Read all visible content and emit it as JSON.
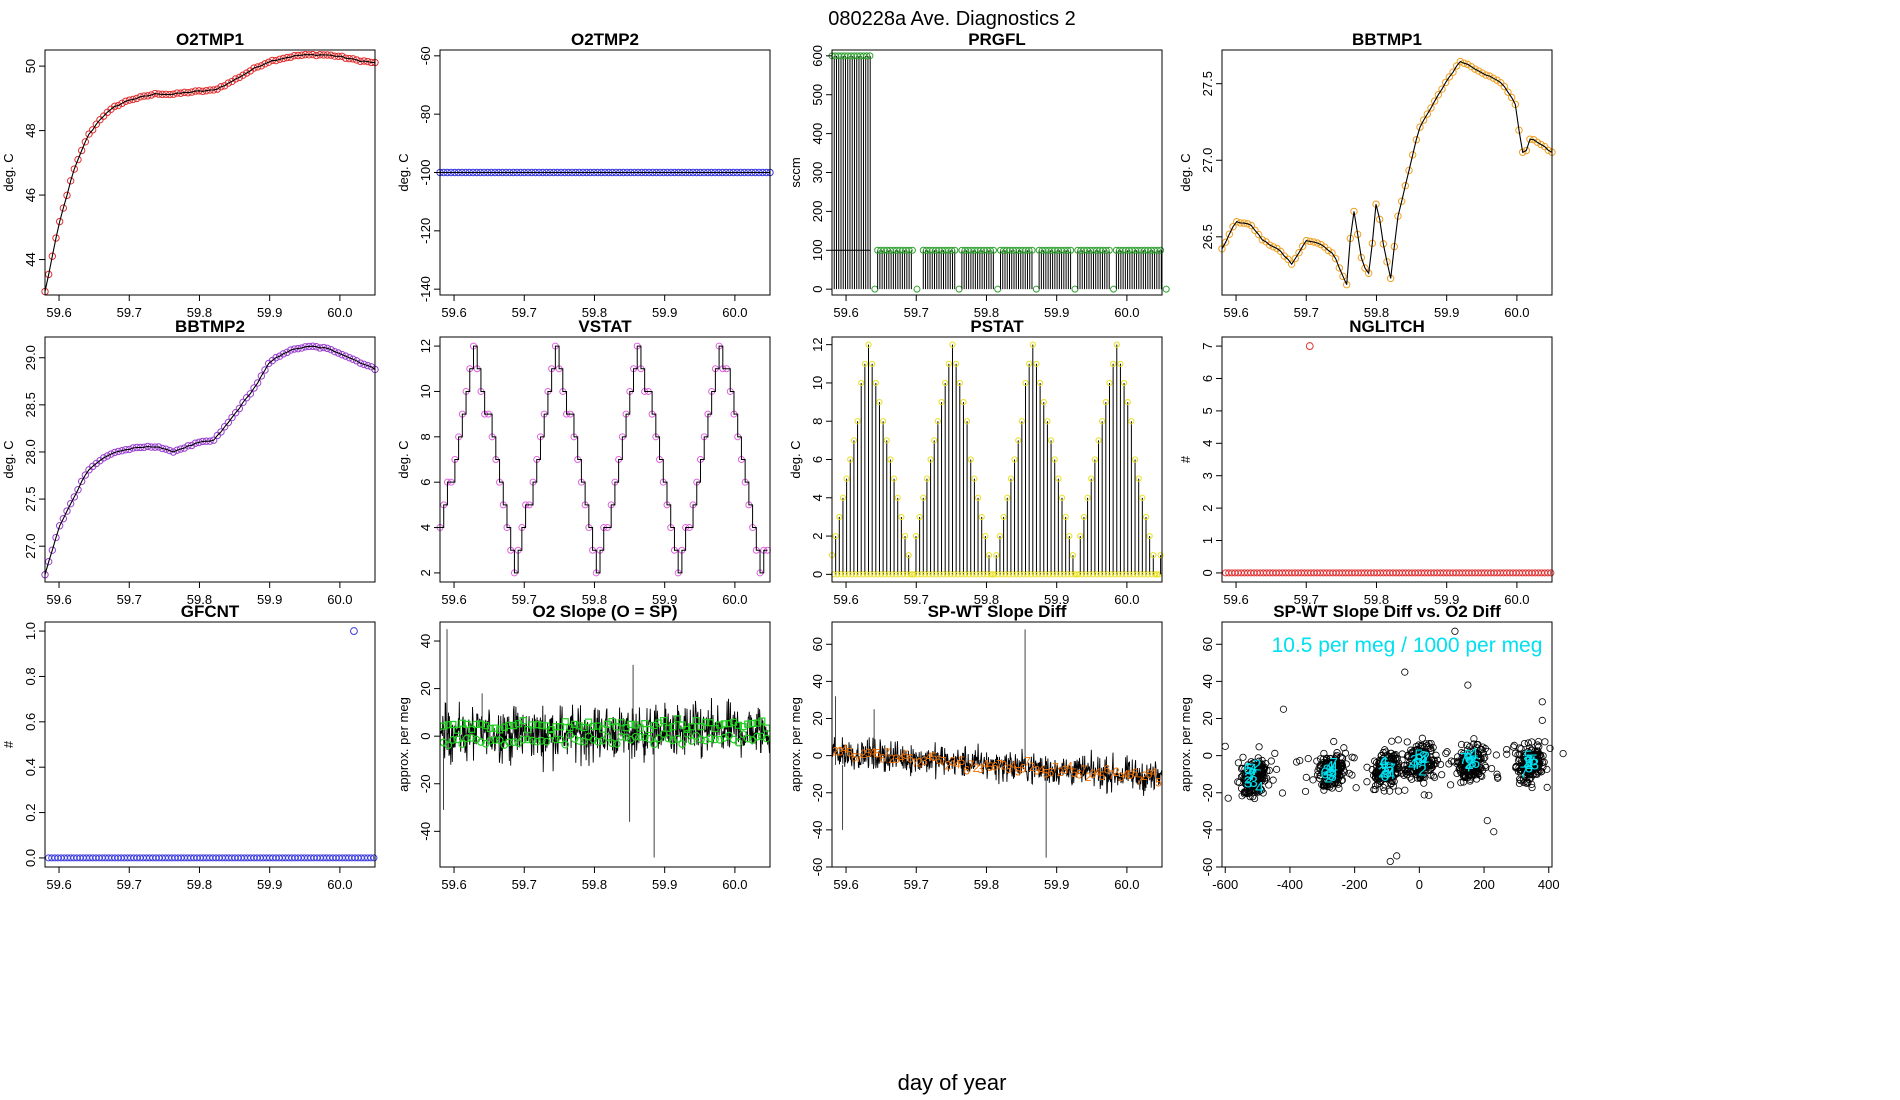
{
  "figure": {
    "title": "080228a   Ave. Diagnostics 2",
    "xlabel": "day of year"
  },
  "colors": {
    "red": "#e03030",
    "blue": "#3838e0",
    "green": "#30a030",
    "orange": "#f0a020",
    "purple": "#9a40d0",
    "magenta": "#e060e0",
    "yellow": "#e8e020",
    "cyan": "#00e0f0",
    "darkgreen": "#20d020",
    "darkorange": "#f07000",
    "line": "#000000"
  },
  "chart_data": [
    {
      "id": "o2tmp1",
      "title": "O2TMP1",
      "ylabel": "deg. C",
      "type": "line",
      "xlim": [
        59.58,
        60.05
      ],
      "ylim": [
        42.9,
        50.5
      ],
      "xticks": [
        "59.6",
        "59.7",
        "59.8",
        "59.9",
        "60.0"
      ],
      "yticks": [
        "44",
        "46",
        "48",
        "50"
      ],
      "marker_color": "red",
      "x": [
        59.58,
        59.6,
        59.62,
        59.64,
        59.66,
        59.68,
        59.7,
        59.72,
        59.74,
        59.76,
        59.78,
        59.8,
        59.82,
        59.84,
        59.86,
        59.88,
        59.9,
        59.92,
        59.94,
        59.96,
        59.98,
        60.0,
        60.02,
        60.05
      ],
      "y": [
        43.0,
        45.1,
        46.7,
        47.8,
        48.4,
        48.75,
        48.95,
        49.05,
        49.15,
        49.12,
        49.18,
        49.22,
        49.25,
        49.45,
        49.7,
        49.95,
        50.15,
        50.25,
        50.33,
        50.35,
        50.35,
        50.3,
        50.2,
        50.1
      ]
    },
    {
      "id": "o2tmp2",
      "title": "O2TMP2",
      "ylabel": "deg. C",
      "type": "line",
      "xlim": [
        59.58,
        60.05
      ],
      "ylim": [
        -142,
        -58
      ],
      "xticks": [
        "59.6",
        "59.7",
        "59.8",
        "59.9",
        "60.0"
      ],
      "yticks": [
        "-140",
        "-120",
        "-100",
        "-80",
        "-60"
      ],
      "marker_color": "blue",
      "x": [
        59.58,
        60.05
      ],
      "y": [
        -100,
        -100
      ]
    },
    {
      "id": "prgfl",
      "title": "PRGFL",
      "ylabel": "sccm",
      "type": "stem",
      "xlim": [
        59.58,
        60.05
      ],
      "ylim": [
        -15,
        615
      ],
      "xticks": [
        "59.6",
        "59.7",
        "59.8",
        "59.9",
        "60.0"
      ],
      "yticks": [
        "0",
        "100",
        "200",
        "300",
        "400",
        "500",
        "600"
      ],
      "marker_color": "green",
      "segments": [
        {
          "from": 59.58,
          "to": 59.635,
          "value": 600
        },
        {
          "from": 59.645,
          "to": 59.695,
          "value": 100
        },
        {
          "from": 59.71,
          "to": 59.755,
          "value": 100
        },
        {
          "from": 59.765,
          "to": 59.81,
          "value": 100
        },
        {
          "from": 59.82,
          "to": 59.865,
          "value": 100
        },
        {
          "from": 59.875,
          "to": 59.92,
          "value": 100
        },
        {
          "from": 59.93,
          "to": 59.975,
          "value": 100
        },
        {
          "from": 59.985,
          "to": 60.05,
          "value": 100
        }
      ]
    },
    {
      "id": "bbtmp1",
      "title": "BBTMP1",
      "ylabel": "deg. C",
      "type": "line",
      "xlim": [
        59.58,
        60.05
      ],
      "ylim": [
        26.12,
        27.72
      ],
      "xticks": [
        "59.6",
        "59.7",
        "59.8",
        "59.9",
        "60.0"
      ],
      "yticks": [
        "26.5",
        "27.0",
        "27.5"
      ],
      "marker_color": "orange",
      "x": [
        59.58,
        59.6,
        59.62,
        59.64,
        59.66,
        59.68,
        59.7,
        59.72,
        59.74,
        59.76,
        59.765,
        59.78,
        59.79,
        59.8,
        59.81,
        59.82,
        59.83,
        59.86,
        59.9,
        59.92,
        59.94,
        59.96,
        59.98,
        60.0,
        60.005,
        60.01,
        60.02,
        60.05
      ],
      "y": [
        26.42,
        26.6,
        26.58,
        26.47,
        26.42,
        26.32,
        26.48,
        26.45,
        26.38,
        26.16,
        26.75,
        26.32,
        26.25,
        26.75,
        26.45,
        26.22,
        26.62,
        27.2,
        27.52,
        27.65,
        27.6,
        27.55,
        27.5,
        27.35,
        27.1,
        27.02,
        27.15,
        27.05
      ]
    },
    {
      "id": "bbtmp2",
      "title": "BBTMP2",
      "ylabel": "deg. C",
      "type": "line",
      "xlim": [
        59.58,
        60.05
      ],
      "ylim": [
        26.62,
        29.22
      ],
      "xticks": [
        "59.6",
        "59.7",
        "59.8",
        "59.9",
        "60.0"
      ],
      "yticks": [
        "27.0",
        "27.5",
        "28.0",
        "28.5",
        "29.0"
      ],
      "marker_color": "purple",
      "x": [
        59.58,
        59.6,
        59.62,
        59.64,
        59.66,
        59.68,
        59.7,
        59.72,
        59.74,
        59.76,
        59.78,
        59.8,
        59.82,
        59.84,
        59.86,
        59.88,
        59.9,
        59.92,
        59.94,
        59.96,
        59.98,
        60.0,
        60.02,
        60.05
      ],
      "y": [
        26.7,
        27.2,
        27.5,
        27.8,
        27.92,
        28.0,
        28.03,
        28.05,
        28.06,
        28.0,
        28.05,
        28.1,
        28.12,
        28.3,
        28.5,
        28.7,
        28.95,
        29.05,
        29.1,
        29.12,
        29.1,
        29.05,
        28.98,
        28.88
      ]
    },
    {
      "id": "vstat",
      "title": "VSTAT",
      "ylabel": "deg. C",
      "type": "step",
      "xlim": [
        59.58,
        60.05
      ],
      "ylim": [
        1.6,
        12.4
      ],
      "xticks": [
        "59.6",
        "59.7",
        "59.8",
        "59.9",
        "60.0"
      ],
      "yticks": [
        "2",
        "4",
        "6",
        "8",
        "10",
        "12"
      ],
      "marker_color": "magenta",
      "cycle_start": 59.58,
      "cycle_length": 0.117,
      "levels": 11
    },
    {
      "id": "pstat",
      "title": "PSTAT",
      "ylabel": "deg. C",
      "type": "stem",
      "xlim": [
        59.58,
        60.05
      ],
      "ylim": [
        -0.4,
        12.4
      ],
      "xticks": [
        "59.6",
        "59.7",
        "59.8",
        "59.9",
        "60.0"
      ],
      "yticks": [
        "0",
        "2",
        "4",
        "6",
        "8",
        "10",
        "12"
      ],
      "marker_color": "yellow",
      "cycle_start": 59.58,
      "cycle_length": 0.117
    },
    {
      "id": "nglitch",
      "title": "NGLITCH",
      "ylabel": "#",
      "type": "scatter",
      "xlim": [
        59.58,
        60.05
      ],
      "ylim": [
        -0.28,
        7.28
      ],
      "xticks": [
        "59.6",
        "59.7",
        "59.8",
        "59.9",
        "60.0"
      ],
      "yticks": [
        "0",
        "1",
        "2",
        "3",
        "4",
        "5",
        "6",
        "7"
      ],
      "marker_color": "red",
      "baseline": 0,
      "outliers": [
        {
          "x": 59.705,
          "y": 7
        }
      ]
    },
    {
      "id": "gfcnt",
      "title": "GFCNT",
      "ylabel": "#",
      "type": "scatter",
      "xlim": [
        59.58,
        60.05
      ],
      "ylim": [
        -0.04,
        1.04
      ],
      "xticks": [
        "59.6",
        "59.7",
        "59.8",
        "59.9",
        "60.0"
      ],
      "yticks": [
        "0.0",
        "0.2",
        "0.4",
        "0.6",
        "0.8",
        "1.0"
      ],
      "marker_color": "blue",
      "baseline": 0,
      "outliers": [
        {
          "x": 60.02,
          "y": 1
        }
      ]
    },
    {
      "id": "o2slope",
      "title": "O2 Slope (O = SP)",
      "ylabel": "approx. per meg",
      "type": "noise",
      "xlim": [
        59.58,
        60.05
      ],
      "ylim": [
        -55,
        48
      ],
      "xticks": [
        "59.6",
        "59.7",
        "59.8",
        "59.9",
        "60.0"
      ],
      "yticks": [
        "-40",
        "-20",
        "0",
        "20",
        "40"
      ],
      "marker_color": "darkgreen",
      "mean_start": 1,
      "mean_end": 2,
      "spread": 8,
      "spikes": [
        {
          "x": 59.59,
          "y": 45
        },
        {
          "x": 59.585,
          "y": -31
        },
        {
          "x": 59.855,
          "y": 30
        },
        {
          "x": 59.85,
          "y": -36
        },
        {
          "x": 59.885,
          "y": -51
        },
        {
          "x": 59.64,
          "y": 18
        }
      ]
    },
    {
      "id": "spwt",
      "title": "SP-WT Slope Diff",
      "ylabel": "approx. per meg",
      "type": "noise",
      "xlim": [
        59.58,
        60.05
      ],
      "ylim": [
        -60,
        72
      ],
      "xticks": [
        "59.6",
        "59.7",
        "59.8",
        "59.9",
        "60.0"
      ],
      "yticks": [
        "-60",
        "-40",
        "-20",
        "0",
        "20",
        "40",
        "60"
      ],
      "marker_color": "darkorange",
      "mean_start": 2,
      "mean_end": -12,
      "spread": 6,
      "spikes": [
        {
          "x": 59.855,
          "y": 68
        },
        {
          "x": 59.585,
          "y": 32
        },
        {
          "x": 59.595,
          "y": -40
        },
        {
          "x": 59.64,
          "y": 25
        },
        {
          "x": 59.885,
          "y": -55
        }
      ]
    },
    {
      "id": "spwt_vs_o2",
      "title": "SP-WT Slope Diff vs. O2 Diff",
      "ylabel": "approx. per meg",
      "type": "scatter",
      "xlim": [
        -610,
        410
      ],
      "ylim": [
        -60,
        72
      ],
      "xticks": [
        "-600",
        "-400",
        "-200",
        "0",
        "200",
        "400"
      ],
      "yticks": [
        "-60",
        "-40",
        "-20",
        "0",
        "20",
        "40",
        "60"
      ],
      "annotation": "10.5 per meg / 1000 per meg",
      "clusters": [
        {
          "cx": -510,
          "cy": -12
        },
        {
          "cx": -270,
          "cy": -8
        },
        {
          "cx": -100,
          "cy": -7
        },
        {
          "cx": 0,
          "cy": -3
        },
        {
          "cx": 160,
          "cy": -4
        },
        {
          "cx": 345,
          "cy": -4
        }
      ],
      "outliers": [
        {
          "x": 110,
          "y": 67
        },
        {
          "x": -45,
          "y": 45
        },
        {
          "x": -600,
          "y": 5
        },
        {
          "x": -420,
          "y": 25
        },
        {
          "x": -70,
          "y": -54
        },
        {
          "x": -90,
          "y": -57
        },
        {
          "x": 210,
          "y": -35
        },
        {
          "x": 230,
          "y": -41
        },
        {
          "x": 380,
          "y": 29
        },
        {
          "x": 380,
          "y": 19
        },
        {
          "x": 150,
          "y": 38
        }
      ]
    }
  ]
}
